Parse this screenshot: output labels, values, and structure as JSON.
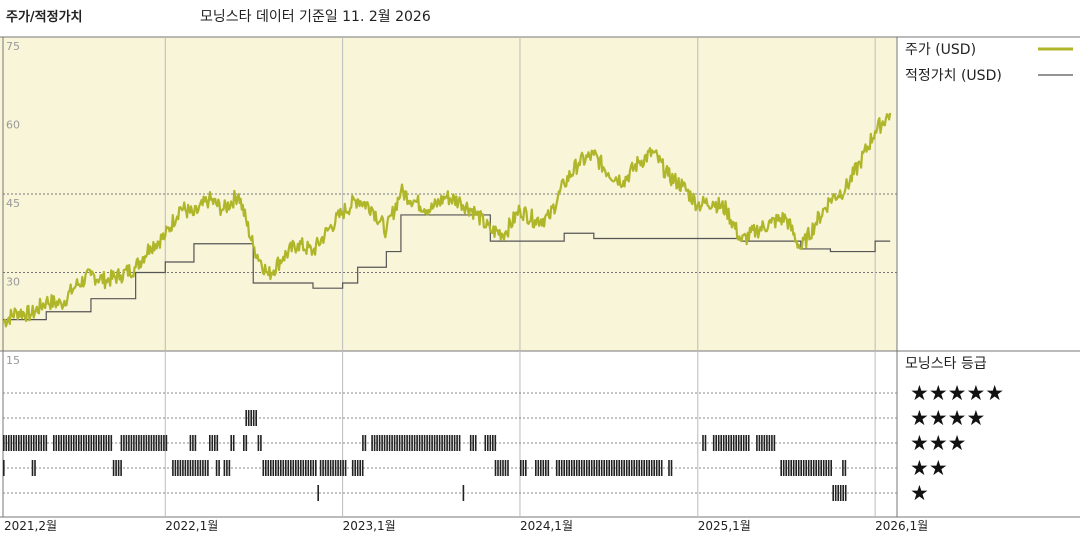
{
  "header": {
    "title": "주가/적정가치",
    "subtitle": "모닝스타 데이터 기준일 11. 2월 2026"
  },
  "colors": {
    "price": "#b0b62a",
    "fair_value": "#555555",
    "plot_bg": "#f8f5d8",
    "grid": "#777777"
  },
  "legend": {
    "price_label": "주가 (USD)",
    "fair_value_label": "적정가치 (USD)",
    "rating_title": "모닝스타 등급",
    "rating_rows": [
      "★★★★★",
      "★★★★",
      "★★★",
      "★★",
      "★"
    ]
  },
  "chart_data": {
    "type": "line",
    "ylim": [
      15,
      75
    ],
    "yticks": [
      75,
      60,
      45,
      30,
      15
    ],
    "x_range": [
      "2021-02",
      "2026-02"
    ],
    "xticks": [
      "2021,2월",
      "2022,1월",
      "2023,1월",
      "2024,1월",
      "2025,1월",
      "2026,1월"
    ],
    "xtick_dates": [
      "2021-02",
      "2022-01",
      "2023-01",
      "2024-01",
      "2025-01",
      "2026-01"
    ],
    "series": [
      {
        "name": "주가 (USD)",
        "points": [
          [
            "2021-02",
            20.5
          ],
          [
            "2021-03",
            22.5
          ],
          [
            "2021-04",
            22.0
          ],
          [
            "2021-05",
            24.5
          ],
          [
            "2021-06",
            24.0
          ],
          [
            "2021-07",
            27.5
          ],
          [
            "2021-08",
            29.5
          ],
          [
            "2021-09",
            28.5
          ],
          [
            "2021-10",
            29.5
          ],
          [
            "2021-11",
            31.0
          ],
          [
            "2021-12",
            35.0
          ],
          [
            "2022-01",
            37.0
          ],
          [
            "2022-02",
            42.5
          ],
          [
            "2022-03",
            41.0
          ],
          [
            "2022-04",
            44.0
          ],
          [
            "2022-05",
            42.0
          ],
          [
            "2022-06",
            45.0
          ],
          [
            "2022-07",
            35.0
          ],
          [
            "2022-08",
            29.5
          ],
          [
            "2022-09",
            33.0
          ],
          [
            "2022-10",
            35.5
          ],
          [
            "2022-11",
            34.0
          ],
          [
            "2022-12",
            38.0
          ],
          [
            "2023-01",
            41.5
          ],
          [
            "2023-02",
            44.0
          ],
          [
            "2023-03",
            42.5
          ],
          [
            "2023-04",
            38.0
          ],
          [
            "2023-05",
            45.5
          ],
          [
            "2023-06",
            43.5
          ],
          [
            "2023-07",
            42.0
          ],
          [
            "2023-08",
            44.5
          ],
          [
            "2023-09",
            43.5
          ],
          [
            "2023-10",
            41.5
          ],
          [
            "2023-11",
            38.0
          ],
          [
            "2023-12",
            37.5
          ],
          [
            "2024-01",
            42.0
          ],
          [
            "2024-02",
            40.0
          ],
          [
            "2024-03",
            40.5
          ],
          [
            "2024-04",
            47.0
          ],
          [
            "2024-05",
            51.0
          ],
          [
            "2024-06",
            52.5
          ],
          [
            "2024-07",
            49.0
          ],
          [
            "2024-08",
            47.5
          ],
          [
            "2024-09",
            51.0
          ],
          [
            "2024-10",
            53.0
          ],
          [
            "2024-11",
            48.5
          ],
          [
            "2024-12",
            46.5
          ],
          [
            "2025-01",
            43.0
          ],
          [
            "2025-02",
            43.5
          ],
          [
            "2025-03",
            42.0
          ],
          [
            "2025-04",
            36.0
          ],
          [
            "2025-05",
            38.0
          ],
          [
            "2025-06",
            39.5
          ],
          [
            "2025-07",
            40.5
          ],
          [
            "2025-08",
            34.5
          ],
          [
            "2025-09",
            39.5
          ],
          [
            "2025-10",
            44.0
          ],
          [
            "2025-11",
            46.0
          ],
          [
            "2025-12",
            51.0
          ],
          [
            "2026-01",
            57.0
          ],
          [
            "2026-02",
            60.5
          ]
        ]
      },
      {
        "name": "적정가치 (USD)",
        "points": [
          [
            "2021-02",
            21.0
          ],
          [
            "2021-05",
            22.5
          ],
          [
            "2021-08",
            25.0
          ],
          [
            "2021-11",
            30.0
          ],
          [
            "2022-01",
            32.0
          ],
          [
            "2022-03",
            35.5
          ],
          [
            "2022-07",
            28.0
          ],
          [
            "2022-11",
            27.0
          ],
          [
            "2023-01",
            28.0
          ],
          [
            "2023-02",
            31.0
          ],
          [
            "2023-04",
            34.0
          ],
          [
            "2023-05",
            41.0
          ],
          [
            "2023-11",
            36.0
          ],
          [
            "2024-04",
            37.5
          ],
          [
            "2024-06",
            36.5
          ],
          [
            "2025-04",
            36.0
          ],
          [
            "2025-08",
            34.5
          ],
          [
            "2025-10",
            34.0
          ],
          [
            "2026-01",
            36.0
          ],
          [
            "2026-02",
            36.0
          ]
        ]
      }
    ],
    "rating_history": [
      {
        "stars": 4,
        "periods": [
          [
            "2022-06-15",
            "2022-07-10"
          ]
        ]
      },
      {
        "stars": 3,
        "periods": [
          [
            "2021-02-01",
            "2021-05-01"
          ],
          [
            "2021-05-15",
            "2021-09-15"
          ],
          [
            "2021-10-01",
            "2022-01-05"
          ],
          [
            "2022-02-20",
            "2022-03-05"
          ],
          [
            "2022-04-01",
            "2022-04-20"
          ],
          [
            "2022-05-15",
            "2022-05-25"
          ],
          [
            "2022-06-10",
            "2022-06-20"
          ],
          [
            "2022-07-10",
            "2022-07-20"
          ],
          [
            "2023-02-10",
            "2023-02-20"
          ],
          [
            "2023-03-01",
            "2023-09-01"
          ],
          [
            "2023-09-20",
            "2023-10-01"
          ],
          [
            "2023-10-20",
            "2023-11-10"
          ],
          [
            "2025-01-10",
            "2025-01-20"
          ],
          [
            "2025-02-01",
            "2025-04-15"
          ],
          [
            "2025-05-01",
            "2025-06-10"
          ]
        ]
      },
      {
        "stars": 2,
        "periods": [
          [
            "2021-02-01",
            "2021-02-05"
          ],
          [
            "2021-04-01",
            "2021-04-10"
          ],
          [
            "2021-09-15",
            "2021-10-01"
          ],
          [
            "2022-01-15",
            "2022-04-01"
          ],
          [
            "2022-04-15",
            "2022-04-25"
          ],
          [
            "2022-05-01",
            "2022-05-15"
          ],
          [
            "2022-07-20",
            "2022-11-10"
          ],
          [
            "2022-11-15",
            "2023-01-10"
          ],
          [
            "2023-01-20",
            "2023-02-10"
          ],
          [
            "2023-11-10",
            "2023-12-10"
          ],
          [
            "2024-01-01",
            "2024-01-15"
          ],
          [
            "2024-02-01",
            "2024-03-01"
          ],
          [
            "2024-03-15",
            "2024-10-20"
          ],
          [
            "2024-11-01",
            "2024-11-10"
          ],
          [
            "2025-06-20",
            "2025-10-01"
          ],
          [
            "2025-10-25",
            "2025-11-01"
          ]
        ]
      },
      {
        "stars": 1,
        "periods": [
          [
            "2022-11-10",
            "2022-11-15"
          ],
          [
            "2023-09-05",
            "2023-09-10"
          ],
          [
            "2025-10-05",
            "2025-11-01"
          ]
        ]
      }
    ]
  }
}
